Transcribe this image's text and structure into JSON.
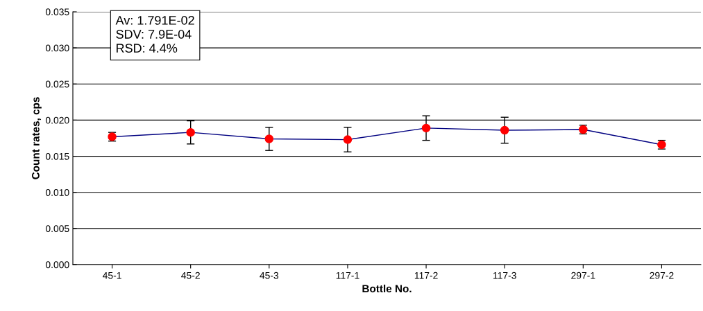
{
  "chart_data": {
    "type": "line",
    "xlabel": "Bottle No.",
    "ylabel": "Count rates, cps",
    "categories": [
      "45-1",
      "45-2",
      "45-3",
      "117-1",
      "117-2",
      "117-3",
      "297-1",
      "297-2"
    ],
    "series": [
      {
        "color": "#000080",
        "values": [
          0.0177,
          0.0183,
          0.0174,
          0.0173,
          0.0189,
          0.0186,
          0.0187,
          0.0166
        ],
        "errors": [
          0.0006,
          0.0016,
          0.0016,
          0.0017,
          0.0017,
          0.0018,
          0.0006,
          0.0006
        ],
        "colors": [
          "#ff0000",
          "#ff0000",
          "#ff0000",
          "#ff0000",
          "#ff0000",
          "#ff0000",
          "#ff0000",
          "#ff0000"
        ]
      }
    ],
    "marker": "circle",
    "ylim": [
      0,
      0.035
    ],
    "yticks": [
      {
        "value": 0,
        "label": "0.000"
      },
      {
        "value": 0.005,
        "label": "0.005"
      },
      {
        "value": 0.01,
        "label": "0.010"
      },
      {
        "value": 0.015,
        "label": "0.015"
      },
      {
        "value": 0.02,
        "label": "0.020"
      },
      {
        "value": 0.025,
        "label": "0.025"
      },
      {
        "value": 0.03,
        "label": "0.030"
      },
      {
        "value": 0.035,
        "label": "0.035"
      }
    ],
    "grid": "y",
    "annotations": [
      "Av: 1.791E-02\nSDV: 7.9E-04\nRSD: 4.4%"
    ]
  }
}
